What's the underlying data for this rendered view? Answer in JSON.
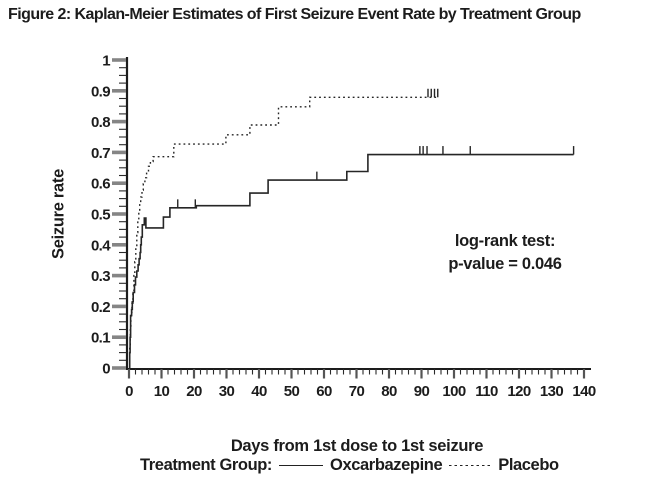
{
  "title": "Figure 2: Kaplan-Meier Estimates of First Seizure Event Rate by Treatment Group",
  "annotation": {
    "line1": "log-rank test:",
    "line2": "p-value = 0.046"
  },
  "legend": {
    "label": "Treatment Group:",
    "items": [
      {
        "name": "Oxcarbazepine",
        "style": "solid"
      },
      {
        "name": "Placebo",
        "style": "dotted"
      }
    ]
  },
  "colors": {
    "ink": "#1c1c1c",
    "curve": "#262626",
    "major_tick": "#858585",
    "minor_tick": "#2a2a2a",
    "background": "#ffffff"
  },
  "chart_data": {
    "type": "line",
    "variant": "kaplan-meier-step",
    "title": "Figure 2: Kaplan-Meier Estimates of First Seizure Event Rate by Treatment Group",
    "xlabel": "Days from 1st dose to 1st seizure",
    "ylabel": "Seizure rate",
    "xlim": [
      0,
      140
    ],
    "ylim": [
      0,
      1
    ],
    "grid": false,
    "legend_position": "bottom",
    "annotation": "log-rank test: p-value = 0.046",
    "x_tick_values": [
      0,
      10,
      20,
      30,
      40,
      50,
      60,
      70,
      80,
      90,
      100,
      110,
      120,
      130,
      140
    ],
    "x_tick_labels": [
      "0",
      "10",
      "20",
      "30",
      "40",
      "50",
      "60",
      "70",
      "80",
      "90",
      "100",
      "110",
      "120",
      "130",
      "140"
    ],
    "x_minor_tick_step": 2,
    "y_tick_values": [
      0,
      0.1,
      0.2,
      0.3,
      0.4,
      0.5,
      0.6,
      0.7,
      0.8,
      0.9,
      1
    ],
    "y_tick_labels": [
      "0",
      "0.1",
      "0.2",
      "0.3",
      "0.4",
      "0.5",
      "0.6",
      "0.7",
      "0.8",
      "0.9",
      "1"
    ],
    "y_minor_tick_step": 0.025,
    "series": [
      {
        "name": "Oxcarbazepine",
        "style": "solid",
        "steps": [
          [
            0.2,
            0.05
          ],
          [
            0.35,
            0.1
          ],
          [
            0.5,
            0.17
          ],
          [
            0.8,
            0.19
          ],
          [
            1,
            0.215
          ],
          [
            1.3,
            0.245
          ],
          [
            1.7,
            0.27
          ],
          [
            2,
            0.295
          ],
          [
            2.4,
            0.315
          ],
          [
            2.8,
            0.335
          ],
          [
            3.1,
            0.355
          ],
          [
            3.4,
            0.375
          ],
          [
            3.6,
            0.4
          ],
          [
            3.8,
            0.425
          ],
          [
            4.1,
            0.465
          ],
          [
            4.7,
            0.487
          ],
          [
            5.2,
            0.455
          ],
          [
            10.6,
            0.49
          ],
          [
            12.6,
            0.52
          ],
          [
            20.7,
            0.527
          ],
          [
            37.2,
            0.568
          ],
          [
            42.8,
            0.61
          ],
          [
            67,
            0.638
          ],
          [
            73.5,
            0.693
          ]
        ],
        "end_day": 136.8,
        "censor_days": [
          15,
          20.4,
          57.8,
          89.5,
          90.5,
          91.7,
          96.6,
          105,
          136.8
        ]
      },
      {
        "name": "Placebo",
        "style": "dotted",
        "steps": [
          [
            0.2,
            0.07
          ],
          [
            0.4,
            0.13
          ],
          [
            0.6,
            0.17
          ],
          [
            0.9,
            0.21
          ],
          [
            1.2,
            0.25
          ],
          [
            1.5,
            0.3
          ],
          [
            1.8,
            0.345
          ],
          [
            2.1,
            0.39
          ],
          [
            2.4,
            0.44
          ],
          [
            2.7,
            0.48
          ],
          [
            3,
            0.51
          ],
          [
            3.3,
            0.53
          ],
          [
            3.6,
            0.555
          ],
          [
            4,
            0.578
          ],
          [
            4.4,
            0.598
          ],
          [
            4.9,
            0.618
          ],
          [
            5.4,
            0.638
          ],
          [
            6,
            0.655
          ],
          [
            6.6,
            0.67
          ],
          [
            7.4,
            0.686
          ],
          [
            13.8,
            0.727
          ],
          [
            29.8,
            0.757
          ],
          [
            37.2,
            0.789
          ],
          [
            46,
            0.848
          ],
          [
            55.6,
            0.879
          ]
        ],
        "end_day": 95,
        "censor_days": [
          92,
          93,
          94,
          95
        ]
      }
    ]
  }
}
